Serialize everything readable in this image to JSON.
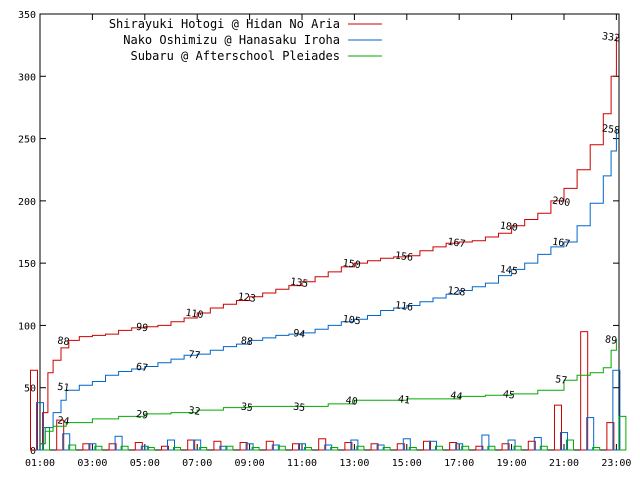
{
  "chart_data": {
    "type": "line",
    "xlim": [
      1,
      23.1
    ],
    "ylim": [
      0,
      350
    ],
    "yticks": [
      0,
      50,
      100,
      150,
      200,
      250,
      300,
      350
    ],
    "xticks": [
      "01:00",
      "03:00",
      "05:00",
      "07:00",
      "09:00",
      "11:00",
      "13:00",
      "15:00",
      "17:00",
      "19:00",
      "21:00",
      "23:00"
    ],
    "grid": false,
    "legend": "top-left",
    "series": [
      {
        "name": "Shirayuki Hotogi @ Hidan No Aria",
        "color": "#cc0000",
        "points": [
          [
            1,
            5
          ],
          [
            1.1,
            30
          ],
          [
            1.3,
            62
          ],
          [
            1.5,
            72
          ],
          [
            1.8,
            82
          ],
          [
            2.1,
            88
          ],
          [
            2.5,
            91
          ],
          [
            3,
            92
          ],
          [
            3.5,
            93
          ],
          [
            4,
            96
          ],
          [
            4.5,
            98
          ],
          [
            5,
            99
          ],
          [
            5.5,
            100
          ],
          [
            6,
            103
          ],
          [
            6.5,
            106
          ],
          [
            7,
            110
          ],
          [
            7.5,
            114
          ],
          [
            8,
            117
          ],
          [
            8.5,
            120
          ],
          [
            9,
            123
          ],
          [
            9.5,
            126
          ],
          [
            10,
            129
          ],
          [
            10.5,
            132
          ],
          [
            11,
            135
          ],
          [
            11.5,
            139
          ],
          [
            12,
            143
          ],
          [
            12.5,
            147
          ],
          [
            13,
            150
          ],
          [
            13.5,
            152
          ],
          [
            14,
            154
          ],
          [
            14.5,
            155
          ],
          [
            15,
            156
          ],
          [
            15.5,
            160
          ],
          [
            16,
            163
          ],
          [
            16.5,
            166
          ],
          [
            17,
            167
          ],
          [
            17.5,
            168
          ],
          [
            18,
            171
          ],
          [
            18.5,
            174
          ],
          [
            19,
            180
          ],
          [
            19.5,
            185
          ],
          [
            20,
            190
          ],
          [
            20.5,
            200
          ],
          [
            21,
            210
          ],
          [
            21.5,
            225
          ],
          [
            22,
            245
          ],
          [
            22.5,
            270
          ],
          [
            22.8,
            300
          ],
          [
            23,
            332
          ]
        ],
        "markers": [
          {
            "t": 1.9,
            "v": 88,
            "label": "88"
          },
          {
            "t": 4.9,
            "v": 99,
            "label": "99"
          },
          {
            "t": 6.9,
            "v": 110,
            "label": "110"
          },
          {
            "t": 8.9,
            "v": 123,
            "label": "123"
          },
          {
            "t": 10.9,
            "v": 135,
            "label": "135"
          },
          {
            "t": 12.9,
            "v": 150,
            "label": "150"
          },
          {
            "t": 14.9,
            "v": 156,
            "label": "156"
          },
          {
            "t": 16.9,
            "v": 167,
            "label": "167"
          },
          {
            "t": 18.9,
            "v": 180,
            "label": "180"
          },
          {
            "t": 20.9,
            "v": 200,
            "label": "200"
          },
          {
            "t": 22.8,
            "v": 332,
            "label": "332"
          }
        ],
        "bars": [
          [
            1,
            64
          ],
          [
            2,
            24
          ],
          [
            3,
            5
          ],
          [
            4,
            5
          ],
          [
            5,
            6
          ],
          [
            6,
            3
          ],
          [
            7,
            8
          ],
          [
            8,
            7
          ],
          [
            9,
            6
          ],
          [
            10,
            7
          ],
          [
            11,
            5
          ],
          [
            12,
            9
          ],
          [
            13,
            6
          ],
          [
            14,
            5
          ],
          [
            15,
            5
          ],
          [
            16,
            7
          ],
          [
            17,
            6
          ],
          [
            18,
            3
          ],
          [
            19,
            5
          ],
          [
            20,
            7
          ],
          [
            21,
            36
          ],
          [
            22,
            95
          ],
          [
            23,
            22
          ]
        ]
      },
      {
        "name": "Nako Oshimizu @ Hanasaku Iroha",
        "color": "#0066cc",
        "points": [
          [
            1,
            5
          ],
          [
            1.2,
            18
          ],
          [
            1.5,
            30
          ],
          [
            1.8,
            40
          ],
          [
            2,
            48
          ],
          [
            2.5,
            52
          ],
          [
            3,
            55
          ],
          [
            3.5,
            60
          ],
          [
            4,
            63
          ],
          [
            4.5,
            65
          ],
          [
            5,
            67
          ],
          [
            5.5,
            70
          ],
          [
            6,
            73
          ],
          [
            6.5,
            76
          ],
          [
            7,
            77
          ],
          [
            7.5,
            80
          ],
          [
            8,
            83
          ],
          [
            8.5,
            85
          ],
          [
            9,
            88
          ],
          [
            9.5,
            90
          ],
          [
            10,
            92
          ],
          [
            10.5,
            93
          ],
          [
            11,
            94
          ],
          [
            11.5,
            97
          ],
          [
            12,
            100
          ],
          [
            12.5,
            103
          ],
          [
            13,
            105
          ],
          [
            13.5,
            108
          ],
          [
            14,
            112
          ],
          [
            14.5,
            114
          ],
          [
            15,
            116
          ],
          [
            15.5,
            119
          ],
          [
            16,
            122
          ],
          [
            16.5,
            125
          ],
          [
            17,
            128
          ],
          [
            17.5,
            131
          ],
          [
            18,
            134
          ],
          [
            18.5,
            140
          ],
          [
            19,
            145
          ],
          [
            19.5,
            150
          ],
          [
            20,
            157
          ],
          [
            20.5,
            163
          ],
          [
            21,
            167
          ],
          [
            21.5,
            180
          ],
          [
            22,
            198
          ],
          [
            22.5,
            220
          ],
          [
            22.8,
            240
          ],
          [
            23,
            258
          ]
        ],
        "markers": [
          {
            "t": 1.9,
            "v": 51,
            "label": "51"
          },
          {
            "t": 4.9,
            "v": 67,
            "label": "67"
          },
          {
            "t": 6.9,
            "v": 77,
            "label": "77"
          },
          {
            "t": 8.9,
            "v": 88,
            "label": "88"
          },
          {
            "t": 10.9,
            "v": 94,
            "label": "94"
          },
          {
            "t": 12.9,
            "v": 105,
            "label": "105"
          },
          {
            "t": 14.9,
            "v": 116,
            "label": "116"
          },
          {
            "t": 16.9,
            "v": 128,
            "label": "128"
          },
          {
            "t": 18.9,
            "v": 145,
            "label": "145"
          },
          {
            "t": 20.9,
            "v": 167,
            "label": "167"
          },
          {
            "t": 22.8,
            "v": 258,
            "label": "258"
          }
        ],
        "bars": [
          [
            1,
            38
          ],
          [
            2,
            13
          ],
          [
            3,
            5
          ],
          [
            4,
            11
          ],
          [
            5,
            3
          ],
          [
            6,
            8
          ],
          [
            7,
            8
          ],
          [
            8,
            3
          ],
          [
            9,
            5
          ],
          [
            10,
            4
          ],
          [
            11,
            5
          ],
          [
            12,
            4
          ],
          [
            13,
            8
          ],
          [
            14,
            4
          ],
          [
            15,
            9
          ],
          [
            16,
            7
          ],
          [
            17,
            5
          ],
          [
            18,
            12
          ],
          [
            19,
            8
          ],
          [
            20,
            10
          ],
          [
            21,
            14
          ],
          [
            22,
            26
          ],
          [
            23,
            64
          ]
        ]
      },
      {
        "name": "Subaru @ Afterschool Pleiades",
        "color": "#00aa00",
        "points": [
          [
            1,
            5
          ],
          [
            1.2,
            15
          ],
          [
            1.5,
            19
          ],
          [
            2,
            22
          ],
          [
            3,
            25
          ],
          [
            4,
            27
          ],
          [
            5,
            29
          ],
          [
            6,
            30
          ],
          [
            7,
            32
          ],
          [
            8,
            34
          ],
          [
            9,
            35
          ],
          [
            10,
            35
          ],
          [
            11,
            35
          ],
          [
            12,
            37
          ],
          [
            13,
            40
          ],
          [
            14,
            40
          ],
          [
            15,
            41
          ],
          [
            16,
            41
          ],
          [
            17,
            43
          ],
          [
            18,
            44
          ],
          [
            19,
            45
          ],
          [
            20,
            48
          ],
          [
            21,
            56
          ],
          [
            21.5,
            60
          ],
          [
            22,
            62
          ],
          [
            22.5,
            66
          ],
          [
            22.8,
            80
          ],
          [
            23,
            89
          ]
        ],
        "markers": [
          {
            "t": 1.9,
            "v": 24,
            "label": "24"
          },
          {
            "t": 4.9,
            "v": 29,
            "label": "29"
          },
          {
            "t": 6.9,
            "v": 32,
            "label": "32"
          },
          {
            "t": 8.9,
            "v": 35,
            "label": "35"
          },
          {
            "t": 10.9,
            "v": 35,
            "label": "35"
          },
          {
            "t": 12.9,
            "v": 40,
            "label": "40"
          },
          {
            "t": 14.9,
            "v": 41,
            "label": "41"
          },
          {
            "t": 16.9,
            "v": 44,
            "label": "44"
          },
          {
            "t": 18.9,
            "v": 45,
            "label": "45"
          },
          {
            "t": 20.9,
            "v": 57,
            "label": "57"
          },
          {
            "t": 22.8,
            "v": 89,
            "label": "89"
          }
        ],
        "bars": [
          [
            1,
            18
          ],
          [
            2,
            4
          ],
          [
            3,
            3
          ],
          [
            4,
            3
          ],
          [
            5,
            2
          ],
          [
            6,
            2
          ],
          [
            7,
            2
          ],
          [
            8,
            3
          ],
          [
            9,
            2
          ],
          [
            10,
            3
          ],
          [
            11,
            2
          ],
          [
            12,
            2
          ],
          [
            13,
            3
          ],
          [
            14,
            2
          ],
          [
            15,
            2
          ],
          [
            16,
            3
          ],
          [
            17,
            3
          ],
          [
            18,
            3
          ],
          [
            19,
            3
          ],
          [
            20,
            3
          ],
          [
            21,
            8
          ],
          [
            22,
            2
          ],
          [
            23,
            27
          ]
        ]
      }
    ]
  }
}
